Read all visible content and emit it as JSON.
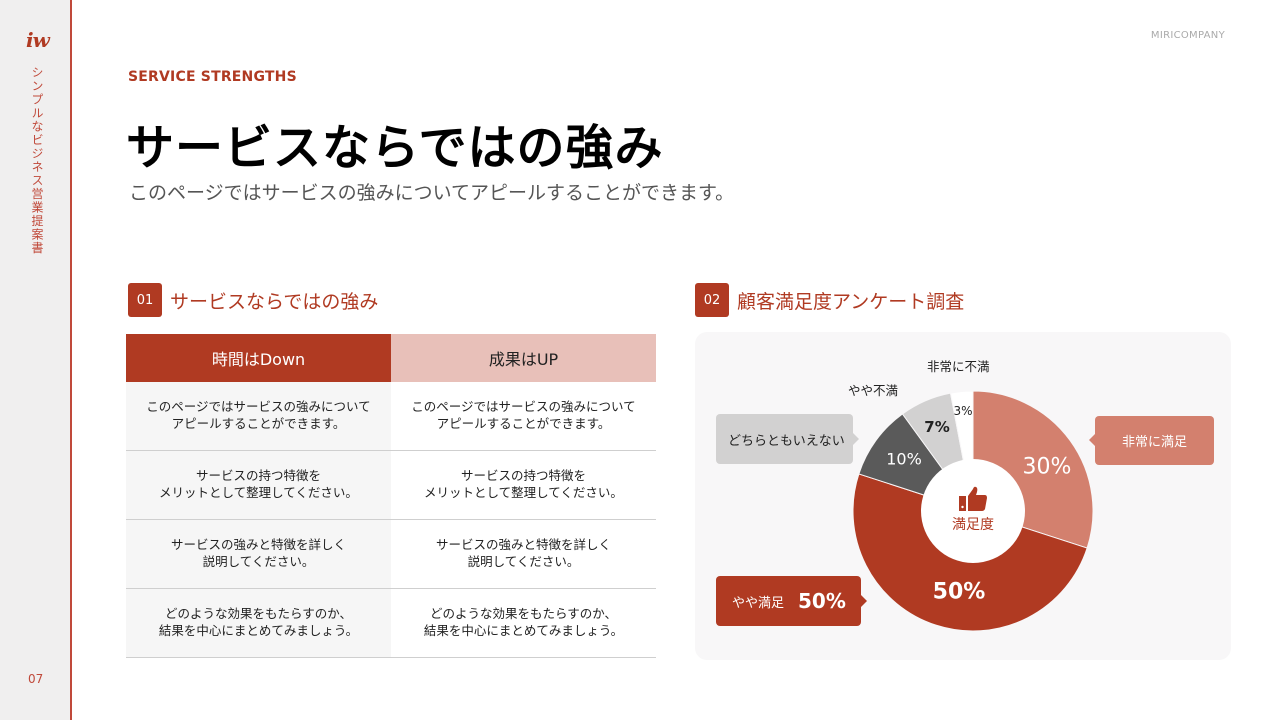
{
  "sidebar": {
    "logo": "iw",
    "vertical_title": "シンプルなビジネス営業提案書",
    "page_number": "07"
  },
  "header": {
    "company": "MIRICOMPANY",
    "eyebrow": "SERVICE STRENGTHS",
    "title": "サービスならではの強み",
    "subtitle": "このページではサービスの強みについてアピールすることができます。"
  },
  "section1": {
    "number": "01",
    "title": "サービスならではの強み",
    "table": {
      "headers": [
        "時間はDown",
        "成果はUP"
      ],
      "rows": [
        [
          "このページではサービスの強みについて\nアピールすることができます。",
          "このページではサービスの強みについて\nアピールすることができます。"
        ],
        [
          "サービスの持つ特徴を\nメリットとして整理してください。",
          "サービスの持つ特徴を\nメリットとして整理してください。"
        ],
        [
          "サービスの強みと特徴を詳しく\n説明してください。",
          "サービスの強みと特徴を詳しく\n説明してください。"
        ],
        [
          "どのような効果をもたらすのか、\n結果を中心にまとめてみましょう。",
          "どのような効果をもたらすのか、\n結果を中心にまとめてみましょう。"
        ]
      ]
    }
  },
  "section2": {
    "number": "02",
    "title": "顧客満足度アンケート調査",
    "center_icon": "thumbs-up-icon",
    "center_label": "満足度",
    "callouts": {
      "neutral": "どちらともいえない",
      "very_satisfied": "非常に満足",
      "satisfied": "やや満足",
      "satisfied_value": "50%"
    },
    "labels": {
      "very_dissatisfied": "非常に不満",
      "somewhat_dissatisfied": "やや不満"
    }
  },
  "chart_data": {
    "type": "pie",
    "variant": "donut",
    "title": "顧客満足度アンケート調査",
    "center_label": "満足度",
    "categories": [
      "非常に満足",
      "やや満足",
      "どちらともいえない",
      "やや不満",
      "非常に不満"
    ],
    "values": [
      30,
      50,
      10,
      7,
      3
    ],
    "value_labels": [
      "30%",
      "50%",
      "10%",
      "7%",
      "3%"
    ],
    "colors": [
      "#d3806e",
      "#b03a22",
      "#5a5a5a",
      "#d2d1d1",
      "#ffffff"
    ],
    "start_angle": "12 o'clock, clockwise",
    "legend": "callouts"
  },
  "colors": {
    "accent": "#b03a22",
    "accent_light": "#d3806e",
    "accent_pale": "#e8c0b9",
    "dark_gray": "#5a5a5a",
    "light_gray": "#d2d1d1"
  }
}
